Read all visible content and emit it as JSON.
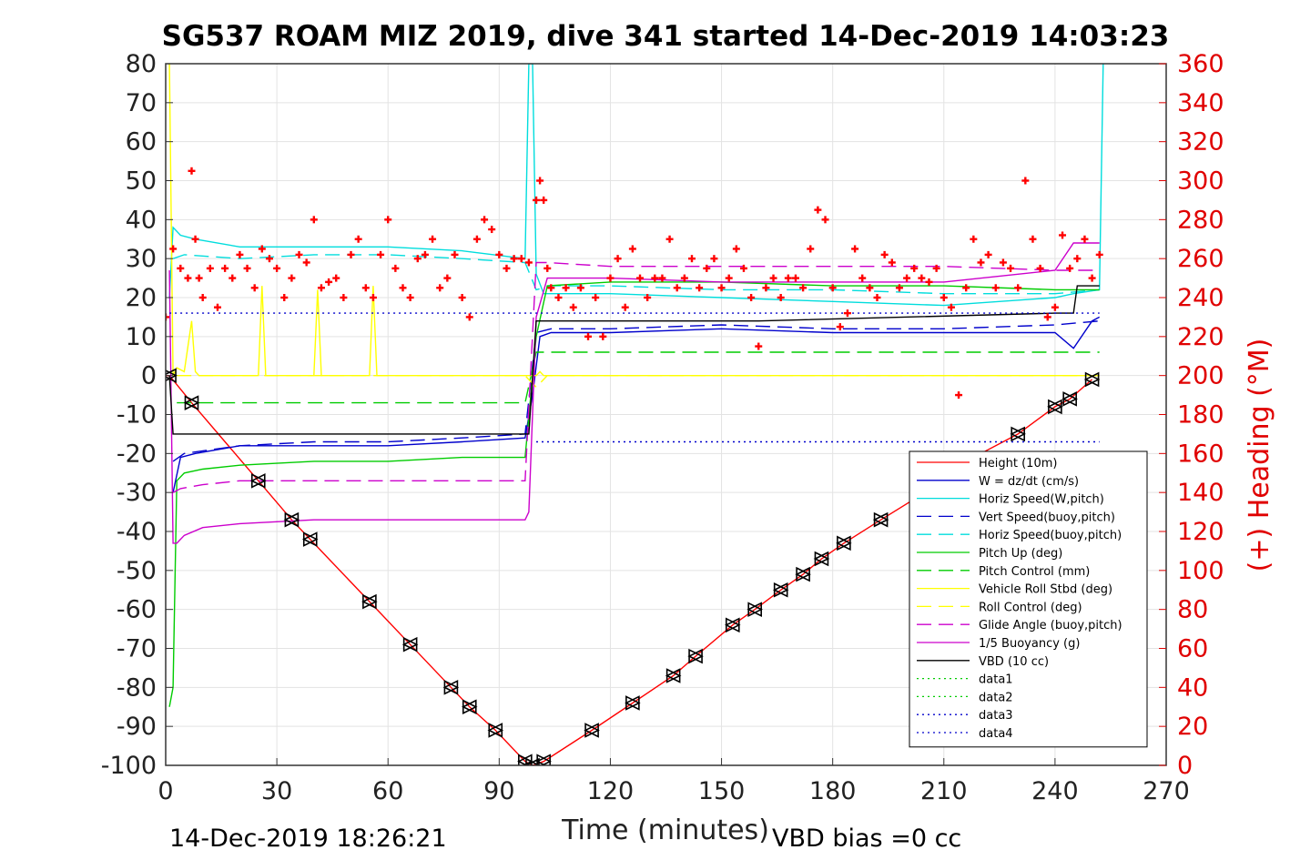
{
  "chart_data": {
    "type": "line",
    "title": "SG537 ROAM MIZ 2019, dive 341 started 14-Dec-2019 14:03:23",
    "xlabel": "Time (minutes)",
    "ylabel_right": "(+) Heading (°M)",
    "xlim": [
      0,
      270
    ],
    "ylim_left": [
      -100,
      80
    ],
    "ylim_right": [
      0,
      360
    ],
    "x_ticks": [
      "0",
      "30",
      "60",
      "90",
      "120",
      "150",
      "180",
      "210",
      "240",
      "270"
    ],
    "y_ticks_left": [
      "80",
      "70",
      "60",
      "50",
      "40",
      "30",
      "20",
      "10",
      "0",
      "-10",
      "-20",
      "-30",
      "-40",
      "-50",
      "-60",
      "-70",
      "-80",
      "-90",
      "-100"
    ],
    "y_ticks_right": [
      "360",
      "340",
      "320",
      "300",
      "280",
      "260",
      "240",
      "220",
      "200",
      "180",
      "160",
      "140",
      "120",
      "100",
      "80",
      "60",
      "40",
      "20",
      "0"
    ],
    "grid": true,
    "legend_position": "lower-right",
    "footer_left": "14-Dec-2019 18:26:21",
    "footer_right": "VBD bias =0 cc",
    "series": [
      {
        "name": "Height (10m)",
        "color": "#ff0000",
        "dash": "solid",
        "x": [
          0,
          1,
          7,
          25,
          34,
          39,
          55,
          66,
          77,
          82,
          89,
          97,
          99,
          102,
          115,
          126,
          137,
          143,
          153,
          159,
          166,
          172,
          177,
          183,
          193,
          210,
          220,
          230,
          240,
          244,
          250
        ],
        "y": [
          0,
          0,
          -7,
          -27,
          -37,
          -42,
          -58,
          -69,
          -80,
          -85,
          -91,
          -99,
          -100,
          -99,
          -91,
          -84,
          -77,
          -72,
          -64,
          -60,
          -55,
          -51,
          -47,
          -43,
          -37,
          -27,
          -20,
          -15,
          -8,
          -6,
          -1
        ]
      },
      {
        "name": "W = dz/dt (cm/s)",
        "color": "#0000cc",
        "dash": "solid",
        "x": [
          2,
          4,
          8,
          20,
          40,
          60,
          80,
          97,
          99,
          101,
          104,
          120,
          150,
          180,
          210,
          240,
          245,
          250,
          252
        ],
        "y": [
          -30,
          -21,
          -20,
          -18,
          -18,
          -18,
          -17,
          -16,
          -5,
          10,
          11,
          11,
          12,
          11,
          11,
          11,
          7,
          14,
          15
        ]
      },
      {
        "name": "Horiz Speed(W,pitch)",
        "color": "#00dddd",
        "dash": "solid",
        "x": [
          1,
          2,
          4,
          8,
          20,
          40,
          60,
          80,
          97,
          98,
          99,
          100,
          102,
          120,
          150,
          180,
          210,
          240,
          245,
          252,
          253
        ],
        "y": [
          20,
          38,
          36,
          35,
          33,
          33,
          33,
          32,
          30,
          80,
          80,
          26,
          21,
          21,
          20,
          19,
          18,
          20,
          21,
          22,
          80
        ]
      },
      {
        "name": "Vert Speed(buoy,pitch)",
        "color": "#0000cc",
        "dash": "dashed",
        "x": [
          2,
          5,
          20,
          40,
          60,
          80,
          97,
          100,
          104,
          120,
          150,
          180,
          210,
          240,
          252
        ],
        "y": [
          -22,
          -20,
          -18,
          -17,
          -17,
          -16,
          -15,
          11,
          12,
          12,
          13,
          12,
          12,
          13,
          14
        ]
      },
      {
        "name": "Horiz Speed(buoy,pitch)",
        "color": "#00dddd",
        "dash": "dashed",
        "x": [
          2,
          5,
          20,
          40,
          60,
          80,
          97,
          100,
          104,
          120,
          150,
          180,
          210,
          240,
          252
        ],
        "y": [
          30,
          31,
          30,
          31,
          31,
          30,
          29,
          22,
          23,
          23,
          22,
          22,
          21,
          21,
          22
        ]
      },
      {
        "name": "Pitch Up (deg)",
        "color": "#00cc00",
        "dash": "solid",
        "x": [
          1,
          2,
          3,
          5,
          10,
          20,
          40,
          60,
          80,
          97,
          100,
          103,
          120,
          150,
          180,
          210,
          240,
          252
        ],
        "y": [
          -85,
          -80,
          -27,
          -25,
          -24,
          -23,
          -22,
          -22,
          -21,
          -21,
          10,
          23,
          24,
          24,
          23,
          23,
          22,
          22
        ]
      },
      {
        "name": "Pitch Control (mm)",
        "color": "#00cc00",
        "dash": "dashed",
        "x": [
          3,
          20,
          40,
          60,
          80,
          97,
          100,
          103,
          252
        ],
        "y": [
          -7,
          -7,
          -7,
          -7,
          -7,
          -7,
          6,
          6,
          6
        ]
      },
      {
        "name": "Vehicle Roll Stbd (deg)",
        "color": "#ffff00",
        "dash": "solid",
        "x": [
          1,
          2,
          3,
          5,
          7,
          8,
          9,
          25,
          26,
          27,
          40,
          41,
          42,
          55,
          56,
          57,
          100,
          101,
          102,
          120,
          150,
          180,
          210,
          240,
          250,
          252
        ],
        "y": [
          80,
          0,
          2,
          1,
          14,
          1,
          0,
          0,
          23,
          0,
          0,
          22,
          0,
          0,
          23,
          0,
          0,
          1,
          0,
          0,
          0,
          0,
          0,
          0,
          0,
          0
        ]
      },
      {
        "name": "Roll Control (deg)",
        "color": "#ffff00",
        "dash": "dashed",
        "x": [
          3,
          97,
          100,
          103,
          252
        ],
        "y": [
          0,
          0,
          -3,
          0,
          0
        ]
      },
      {
        "name": "Glide Angle (buoy,pitch)",
        "color": "#cc00cc",
        "dash": "dashed",
        "x": [
          2,
          4,
          10,
          20,
          40,
          60,
          80,
          97,
          100,
          103,
          120,
          150,
          180,
          210,
          240,
          252
        ],
        "y": [
          -30,
          -29,
          -28,
          -27,
          -27,
          -27,
          -27,
          -27,
          29,
          29,
          28,
          28,
          28,
          28,
          27,
          27
        ]
      },
      {
        "name": "1/5 Buoyancy (g)",
        "color": "#cc00cc",
        "dash": "solid",
        "x": [
          1,
          2,
          3,
          5,
          10,
          20,
          40,
          60,
          80,
          97,
          98,
          100,
          103,
          120,
          150,
          180,
          210,
          240,
          245,
          252
        ],
        "y": [
          27,
          -43,
          -43,
          -41,
          -39,
          -38,
          -37,
          -37,
          -37,
          -37,
          -35,
          15,
          25,
          25,
          24,
          24,
          24,
          27,
          34,
          34
        ]
      },
      {
        "name": "VBD (10 cc)",
        "color": "#000000",
        "dash": "solid",
        "x": [
          1,
          2,
          3,
          97,
          98,
          100,
          103,
          160,
          240,
          245,
          246,
          252
        ],
        "y": [
          0,
          -15,
          -15,
          -15,
          -15,
          14,
          14,
          14,
          16,
          16,
          23,
          23
        ]
      },
      {
        "name": "data1",
        "color": "#00cc00",
        "dash": "dotted",
        "x": [],
        "y": []
      },
      {
        "name": "data2",
        "color": "#00cc00",
        "dash": "dotted",
        "x": [],
        "y": []
      },
      {
        "name": "data3",
        "color": "#0000cc",
        "dash": "dotted",
        "x": [
          1,
          252
        ],
        "y": [
          16,
          16
        ]
      },
      {
        "name": "data4",
        "color": "#0000cc",
        "dash": "dotted",
        "x": [
          100,
          252
        ],
        "y": [
          -17,
          -17
        ]
      }
    ],
    "heading": {
      "axis": "right",
      "color": "#ff0000",
      "marker": "+",
      "x": [
        0,
        2,
        4,
        6,
        7,
        8,
        9,
        10,
        12,
        14,
        16,
        18,
        20,
        22,
        24,
        26,
        28,
        30,
        32,
        34,
        36,
        38,
        40,
        42,
        44,
        46,
        48,
        50,
        52,
        54,
        56,
        58,
        60,
        62,
        64,
        66,
        68,
        70,
        72,
        74,
        76,
        78,
        80,
        82,
        84,
        86,
        88,
        90,
        92,
        94,
        96,
        98,
        100,
        101,
        102,
        103,
        104,
        106,
        108,
        110,
        112,
        114,
        116,
        118,
        120,
        122,
        124,
        126,
        128,
        130,
        132,
        134,
        136,
        138,
        140,
        142,
        144,
        146,
        148,
        150,
        152,
        154,
        156,
        158,
        160,
        162,
        164,
        166,
        168,
        170,
        172,
        174,
        176,
        178,
        180,
        182,
        184,
        186,
        188,
        190,
        192,
        194,
        196,
        198,
        200,
        202,
        204,
        206,
        208,
        210,
        212,
        214,
        216,
        218,
        220,
        222,
        224,
        226,
        228,
        230,
        232,
        234,
        236,
        238,
        240,
        242,
        244,
        246,
        248,
        250,
        252
      ],
      "y": [
        230,
        265,
        255,
        250,
        305,
        270,
        250,
        240,
        255,
        235,
        255,
        250,
        262,
        255,
        245,
        265,
        260,
        255,
        240,
        250,
        262,
        258,
        280,
        245,
        248,
        250,
        240,
        262,
        270,
        245,
        240,
        262,
        280,
        255,
        245,
        240,
        260,
        262,
        270,
        245,
        250,
        262,
        240,
        230,
        270,
        280,
        275,
        262,
        255,
        260,
        260,
        258,
        290,
        300,
        290,
        255,
        245,
        240,
        245,
        235,
        245,
        220,
        240,
        220,
        250,
        260,
        235,
        265,
        250,
        240,
        250,
        250,
        270,
        245,
        250,
        260,
        245,
        255,
        260,
        245,
        250,
        265,
        255,
        240,
        215,
        245,
        250,
        240,
        250,
        250,
        245,
        265,
        285,
        280,
        245,
        225,
        232,
        265,
        250,
        245,
        240,
        262,
        258,
        245,
        250,
        255,
        250,
        248,
        255,
        240,
        235,
        190,
        245,
        270,
        258,
        262,
        245,
        258,
        255,
        245,
        300,
        270,
        255,
        230,
        235,
        272,
        255,
        260,
        270,
        250,
        262
      ]
    },
    "markers": {
      "symbol": "triangle",
      "x": [
        1,
        7,
        25,
        34,
        39,
        55,
        66,
        77,
        82,
        89,
        97,
        99,
        102,
        115,
        126,
        137,
        143,
        153,
        159,
        166,
        172,
        177,
        183,
        193,
        230,
        240,
        244,
        250
      ],
      "y": [
        0,
        -7,
        -27,
        -37,
        -42,
        -58,
        -69,
        -80,
        -85,
        -91,
        -99,
        -100,
        -99,
        -91,
        -84,
        -77,
        -72,
        -64,
        -60,
        -55,
        -51,
        -47,
        -43,
        -37,
        -15,
        -8,
        -6,
        -1
      ]
    }
  }
}
